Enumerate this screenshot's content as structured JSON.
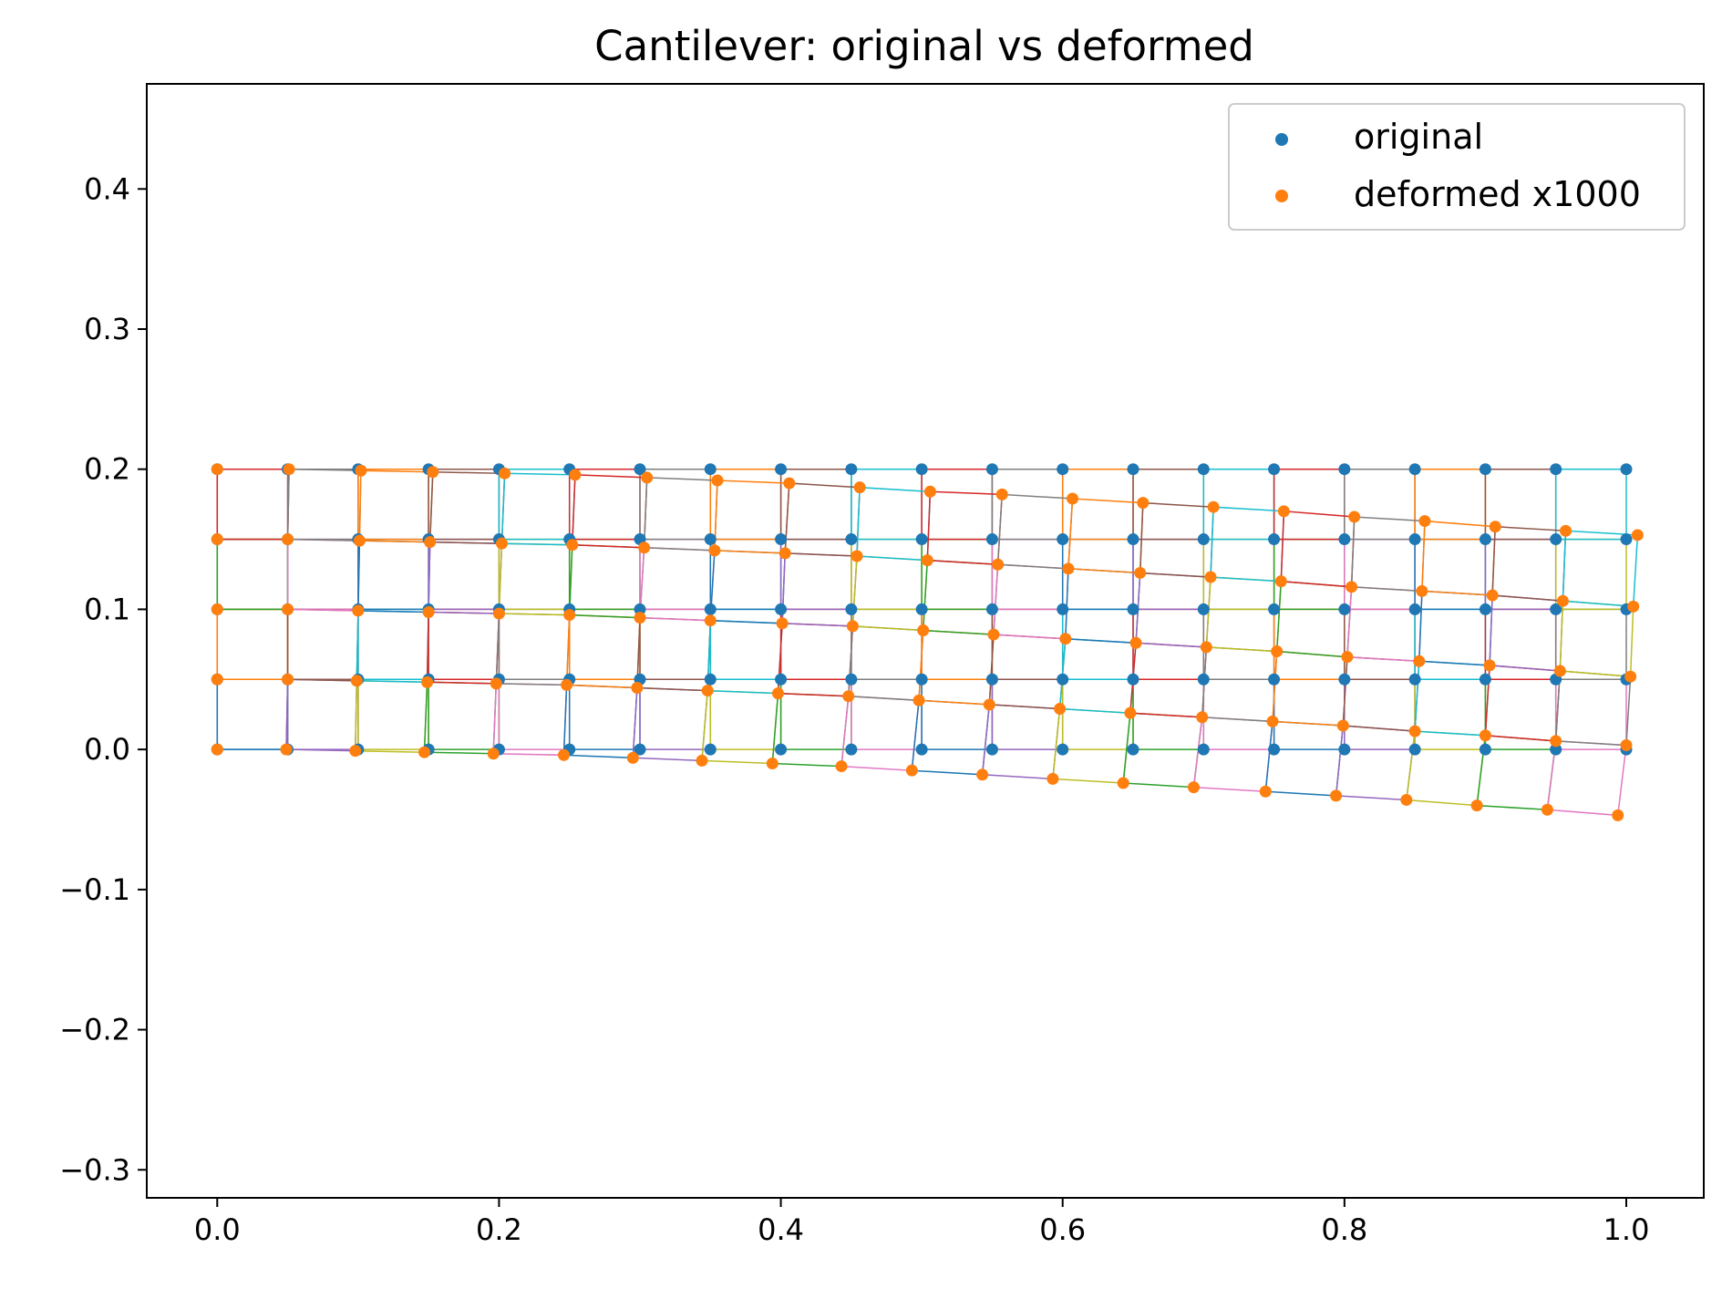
{
  "chart_data": {
    "type": "scatter",
    "title": "Cantilever: original vs deformed",
    "xlabel": "",
    "ylabel": "",
    "xlim": [
      -0.05,
      1.055
    ],
    "ylim": [
      -0.32,
      0.475
    ],
    "grid": false,
    "legend_position": "top-right",
    "x_ticks": [
      0.0,
      0.2,
      0.4,
      0.6,
      0.8,
      1.0
    ],
    "x_tick_labels": [
      "0.0",
      "0.2",
      "0.4",
      "0.6",
      "0.8",
      "1.0"
    ],
    "y_ticks": [
      -0.3,
      -0.2,
      -0.1,
      0.0,
      0.1,
      0.2,
      0.3,
      0.4
    ],
    "y_tick_labels": [
      "−0.3",
      "−0.2",
      "−0.1",
      "0.0",
      "0.1",
      "0.2",
      "0.3",
      "0.4"
    ],
    "grid_size": {
      "nx": 21,
      "ny": 5
    },
    "series": [
      {
        "name": "original",
        "color": "#1f77b4",
        "rows": [
          {
            "y": 0.0,
            "x": [
              0.0,
              0.05,
              0.1,
              0.15,
              0.2,
              0.25,
              0.3,
              0.35,
              0.4,
              0.45,
              0.5,
              0.55,
              0.6,
              0.65,
              0.7,
              0.75,
              0.8,
              0.85,
              0.9,
              0.95,
              1.0
            ]
          },
          {
            "y": 0.05,
            "x": [
              0.0,
              0.05,
              0.1,
              0.15,
              0.2,
              0.25,
              0.3,
              0.35,
              0.4,
              0.45,
              0.5,
              0.55,
              0.6,
              0.65,
              0.7,
              0.75,
              0.8,
              0.85,
              0.9,
              0.95,
              1.0
            ]
          },
          {
            "y": 0.1,
            "x": [
              0.0,
              0.05,
              0.1,
              0.15,
              0.2,
              0.25,
              0.3,
              0.35,
              0.4,
              0.45,
              0.5,
              0.55,
              0.6,
              0.65,
              0.7,
              0.75,
              0.8,
              0.85,
              0.9,
              0.95,
              1.0
            ]
          },
          {
            "y": 0.15,
            "x": [
              0.0,
              0.05,
              0.1,
              0.15,
              0.2,
              0.25,
              0.3,
              0.35,
              0.4,
              0.45,
              0.5,
              0.55,
              0.6,
              0.65,
              0.7,
              0.75,
              0.8,
              0.85,
              0.9,
              0.95,
              1.0
            ]
          },
          {
            "y": 0.2,
            "x": [
              0.0,
              0.05,
              0.1,
              0.15,
              0.2,
              0.25,
              0.3,
              0.35,
              0.4,
              0.45,
              0.5,
              0.55,
              0.6,
              0.65,
              0.7,
              0.75,
              0.8,
              0.85,
              0.9,
              0.95,
              1.0
            ]
          }
        ]
      },
      {
        "name": "deformed x1000",
        "color": "#ff7f0e",
        "rows": [
          {
            "x": [
              0.0,
              0.049,
              0.098,
              0.147,
              0.196,
              0.246,
              0.295,
              0.344,
              0.394,
              0.443,
              0.493,
              0.543,
              0.593,
              0.643,
              0.693,
              0.744,
              0.794,
              0.844,
              0.894,
              0.944,
              0.994
            ],
            "y": [
              0.0,
              0.0,
              -0.001,
              -0.002,
              -0.003,
              -0.004,
              -0.006,
              -0.008,
              -0.01,
              -0.012,
              -0.015,
              -0.018,
              -0.021,
              -0.024,
              -0.027,
              -0.03,
              -0.033,
              -0.036,
              -0.04,
              -0.043,
              -0.047
            ]
          },
          {
            "x": [
              0.0,
              0.05,
              0.099,
              0.149,
              0.198,
              0.248,
              0.298,
              0.348,
              0.398,
              0.448,
              0.498,
              0.548,
              0.598,
              0.648,
              0.699,
              0.749,
              0.799,
              0.85,
              0.9,
              0.95,
              1.0
            ],
            "y": [
              0.05,
              0.05,
              0.049,
              0.048,
              0.047,
              0.046,
              0.044,
              0.042,
              0.04,
              0.038,
              0.035,
              0.032,
              0.029,
              0.026,
              0.023,
              0.02,
              0.017,
              0.013,
              0.01,
              0.006,
              0.003
            ]
          },
          {
            "x": [
              0.0,
              0.05,
              0.1,
              0.15,
              0.2,
              0.25,
              0.3,
              0.35,
              0.401,
              0.451,
              0.501,
              0.551,
              0.602,
              0.652,
              0.702,
              0.752,
              0.802,
              0.853,
              0.903,
              0.953,
              1.003
            ],
            "y": [
              0.1,
              0.1,
              0.099,
              0.098,
              0.097,
              0.096,
              0.094,
              0.092,
              0.09,
              0.088,
              0.085,
              0.082,
              0.079,
              0.076,
              0.073,
              0.07,
              0.066,
              0.063,
              0.06,
              0.056,
              0.052
            ]
          },
          {
            "x": [
              0.0,
              0.05,
              0.101,
              0.151,
              0.202,
              0.252,
              0.303,
              0.353,
              0.403,
              0.454,
              0.504,
              0.554,
              0.604,
              0.655,
              0.705,
              0.755,
              0.805,
              0.855,
              0.905,
              0.955,
              1.005
            ],
            "y": [
              0.15,
              0.15,
              0.149,
              0.148,
              0.147,
              0.146,
              0.144,
              0.142,
              0.14,
              0.138,
              0.135,
              0.132,
              0.129,
              0.126,
              0.123,
              0.12,
              0.116,
              0.113,
              0.11,
              0.106,
              0.102
            ]
          },
          {
            "x": [
              0.0,
              0.051,
              0.102,
              0.153,
              0.204,
              0.254,
              0.305,
              0.355,
              0.406,
              0.456,
              0.506,
              0.557,
              0.607,
              0.657,
              0.707,
              0.757,
              0.807,
              0.857,
              0.907,
              0.957,
              1.008
            ],
            "y": [
              0.2,
              0.2,
              0.199,
              0.198,
              0.197,
              0.196,
              0.194,
              0.192,
              0.19,
              0.187,
              0.184,
              0.182,
              0.179,
              0.176,
              0.173,
              0.17,
              0.166,
              0.163,
              0.159,
              0.156,
              0.153
            ]
          }
        ]
      }
    ]
  }
}
